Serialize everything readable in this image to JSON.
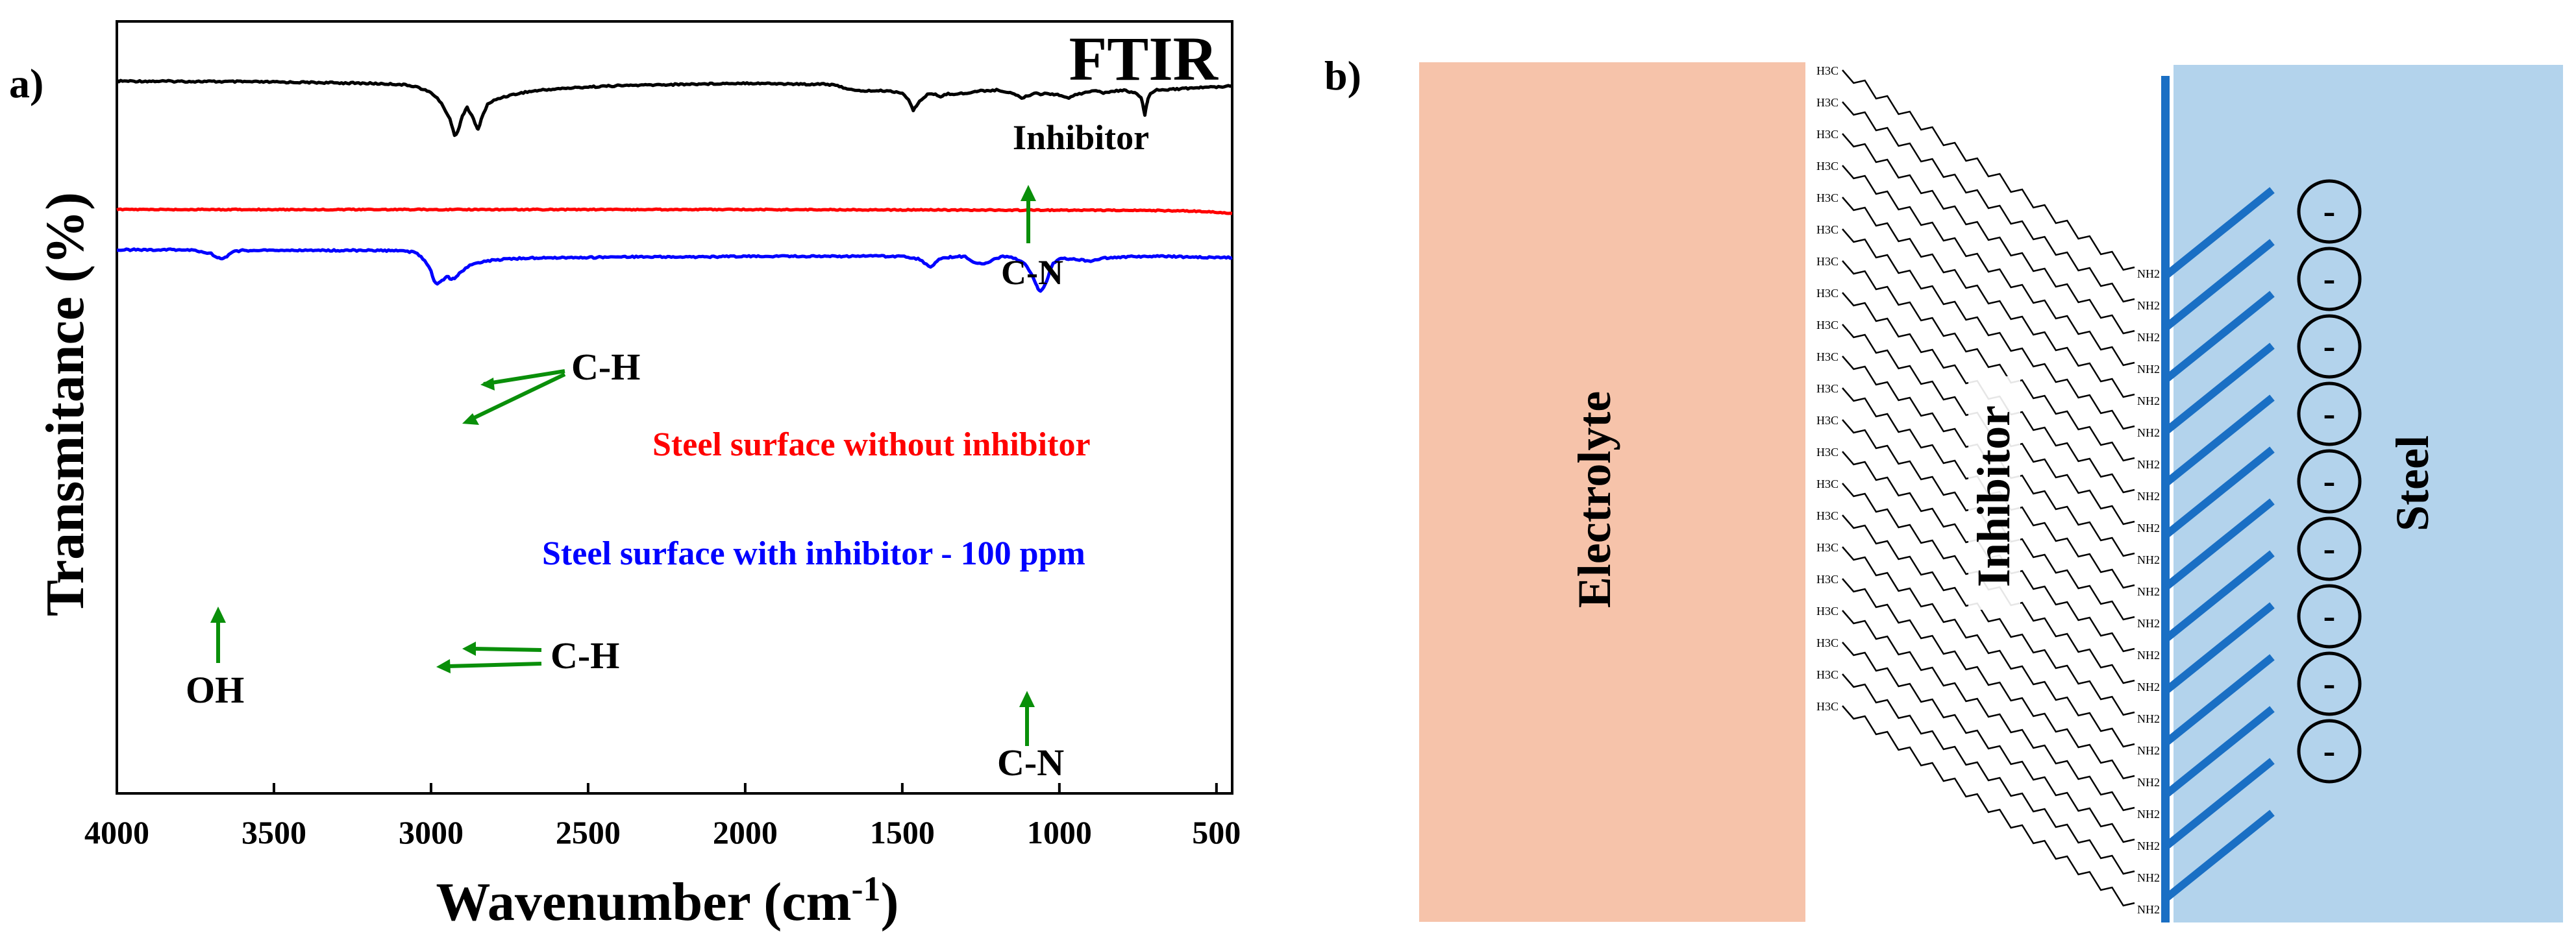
{
  "panel_a": {
    "label": "a)"
  },
  "panel_b": {
    "label": "b)"
  },
  "chart_data": {
    "type": "line",
    "title": "FTIR",
    "xlabel": "Wavenumber (cm",
    "xlabel_sup": "-1",
    "xlabel_close": ")",
    "ylabel": "Transmitance (%)",
    "xlim": [
      4000,
      450
    ],
    "x_reversed": true,
    "yticks_visible": false,
    "xticks": [
      4000,
      3500,
      3000,
      2500,
      2000,
      1500,
      1000,
      500
    ],
    "xtick_labels": [
      "4000",
      "3500",
      "3000",
      "2500",
      "2000",
      "1500",
      "1000",
      "500"
    ],
    "series": [
      {
        "name": "Inhibitor",
        "color": "#000000",
        "baseline": 92,
        "points": [
          [
            4000,
            92
          ],
          [
            3800,
            92.4
          ],
          [
            3600,
            93
          ],
          [
            3400,
            94
          ],
          [
            3200,
            95.5
          ],
          [
            3100,
            97
          ],
          [
            3050,
            100
          ],
          [
            3000,
            110
          ],
          [
            2980,
            118
          ],
          [
            2960,
            132
          ],
          [
            2940,
            150
          ],
          [
            2925,
            176
          ],
          [
            2915,
            170
          ],
          [
            2900,
            145
          ],
          [
            2885,
            133
          ],
          [
            2870,
            145
          ],
          [
            2855,
            163
          ],
          [
            2850,
            167
          ],
          [
            2840,
            150
          ],
          [
            2820,
            128
          ],
          [
            2800,
            122
          ],
          [
            2780,
            118
          ],
          [
            2750,
            114
          ],
          [
            2700,
            109
          ],
          [
            2650,
            106
          ],
          [
            2600,
            104
          ],
          [
            2500,
            101
          ],
          [
            2400,
            99
          ],
          [
            2300,
            98
          ],
          [
            2200,
            97
          ],
          [
            2100,
            96
          ],
          [
            2000,
            95
          ],
          [
            1900,
            96
          ],
          [
            1800,
            97
          ],
          [
            1750,
            96
          ],
          [
            1700,
            100
          ],
          [
            1650,
            107
          ],
          [
            1600,
            107
          ],
          [
            1550,
            107
          ],
          [
            1500,
            110
          ],
          [
            1480,
            121
          ],
          [
            1465,
            137
          ],
          [
            1455,
            131
          ],
          [
            1445,
            122
          ],
          [
            1420,
            113
          ],
          [
            1400,
            112
          ],
          [
            1378,
            116
          ],
          [
            1360,
            112
          ],
          [
            1300,
            111
          ],
          [
            1250,
            107
          ],
          [
            1200,
            106
          ],
          [
            1150,
            110
          ],
          [
            1120,
            118
          ],
          [
            1100,
            115
          ],
          [
            1080,
            110
          ],
          [
            1060,
            112
          ],
          [
            1040,
            111
          ],
          [
            1000,
            113
          ],
          [
            970,
            119
          ],
          [
            950,
            112
          ],
          [
            930,
            111
          ],
          [
            910,
            108
          ],
          [
            890,
            107
          ],
          [
            860,
            110
          ],
          [
            800,
            106
          ],
          [
            760,
            110
          ],
          [
            740,
            118
          ],
          [
            735,
            128
          ],
          [
            728,
            144
          ],
          [
            722,
            128
          ],
          [
            718,
            120
          ],
          [
            710,
            110
          ],
          [
            690,
            106
          ],
          [
            660,
            105
          ],
          [
            620,
            104
          ],
          [
            550,
            102
          ],
          [
            500,
            101
          ],
          [
            450,
            99
          ]
        ]
      },
      {
        "name": "Steel surface without inhibitor",
        "color": "#ff0000",
        "baseline": 290,
        "points": [
          [
            4000,
            290
          ],
          [
            3500,
            290
          ],
          [
            3000,
            290
          ],
          [
            2500,
            290
          ],
          [
            2000,
            290
          ],
          [
            1500,
            290.5
          ],
          [
            1000,
            291
          ],
          [
            700,
            291.5
          ],
          [
            600,
            292
          ],
          [
            500,
            294
          ],
          [
            450,
            296
          ]
        ]
      },
      {
        "name": "Steel surface with inhibitor - 100 ppm",
        "color": "#0000ff",
        "baseline": 352,
        "points": [
          [
            4000,
            352
          ],
          [
            3800,
            352
          ],
          [
            3750,
            353
          ],
          [
            3700,
            358
          ],
          [
            3680,
            364
          ],
          [
            3665,
            366
          ],
          [
            3650,
            362
          ],
          [
            3630,
            355
          ],
          [
            3600,
            353
          ],
          [
            3400,
            353
          ],
          [
            3200,
            353
          ],
          [
            3100,
            353.5
          ],
          [
            3050,
            356
          ],
          [
            3020,
            368
          ],
          [
            3000,
            385
          ],
          [
            2990,
            400
          ],
          [
            2980,
            404
          ],
          [
            2965,
            400
          ],
          [
            2950,
            392
          ],
          [
            2935,
            398
          ],
          [
            2925,
            396
          ],
          [
            2910,
            388
          ],
          [
            2890,
            381
          ],
          [
            2870,
            374
          ],
          [
            2850,
            372
          ],
          [
            2800,
            368
          ],
          [
            2750,
            366
          ],
          [
            2700,
            365
          ],
          [
            2600,
            364
          ],
          [
            2500,
            364
          ],
          [
            2400,
            363
          ],
          [
            2300,
            363
          ],
          [
            2200,
            363
          ],
          [
            2100,
            363
          ],
          [
            2000,
            362
          ],
          [
            1900,
            362
          ],
          [
            1800,
            362
          ],
          [
            1700,
            362
          ],
          [
            1600,
            362
          ],
          [
            1500,
            362
          ],
          [
            1450,
            366
          ],
          [
            1430,
            372
          ],
          [
            1410,
            378
          ],
          [
            1400,
            374
          ],
          [
            1390,
            369
          ],
          [
            1370,
            365
          ],
          [
            1330,
            362
          ],
          [
            1300,
            363
          ],
          [
            1280,
            369
          ],
          [
            1260,
            373
          ],
          [
            1240,
            374
          ],
          [
            1220,
            370
          ],
          [
            1200,
            365
          ],
          [
            1180,
            362
          ],
          [
            1160,
            363
          ],
          [
            1140,
            366
          ],
          [
            1110,
            374
          ],
          [
            1090,
            388
          ],
          [
            1075,
            405
          ],
          [
            1068,
            412
          ],
          [
            1060,
            415
          ],
          [
            1050,
            410
          ],
          [
            1040,
            400
          ],
          [
            1030,
            385
          ],
          [
            1020,
            373
          ],
          [
            1000,
            365
          ],
          [
            960,
            366
          ],
          [
            930,
            368
          ],
          [
            900,
            369
          ],
          [
            880,
            368
          ],
          [
            860,
            365
          ],
          [
            800,
            363
          ],
          [
            700,
            362
          ],
          [
            600,
            363
          ],
          [
            500,
            364
          ],
          [
            450,
            364
          ]
        ]
      }
    ],
    "annotations": {
      "inhibitor_label": "Inhibitor",
      "cn_top": "C-N",
      "ch_top": "C-H",
      "without_label": "Steel surface without inhibitor",
      "with_label": "Steel surface with inhibitor - 100 ppm",
      "oh": "OH",
      "ch_bottom": "C-H",
      "cn_bottom": "C-N"
    },
    "annotation_color": "#0a8f0a"
  },
  "diagram": {
    "electrolyte_label": "Electrolyte",
    "inhibitor_label": "Inhibitor",
    "steel_label": "Steel",
    "electrolyte_color": "#f6c3aa",
    "steel_color": "#b3d3ec",
    "wall_color": "#1a6fc4",
    "chain_head_label": "H3C",
    "chain_tail_label": "NH2",
    "chain_count": 21,
    "charge_symbol": "-",
    "charge_count": 9,
    "hatch_count": 13
  }
}
